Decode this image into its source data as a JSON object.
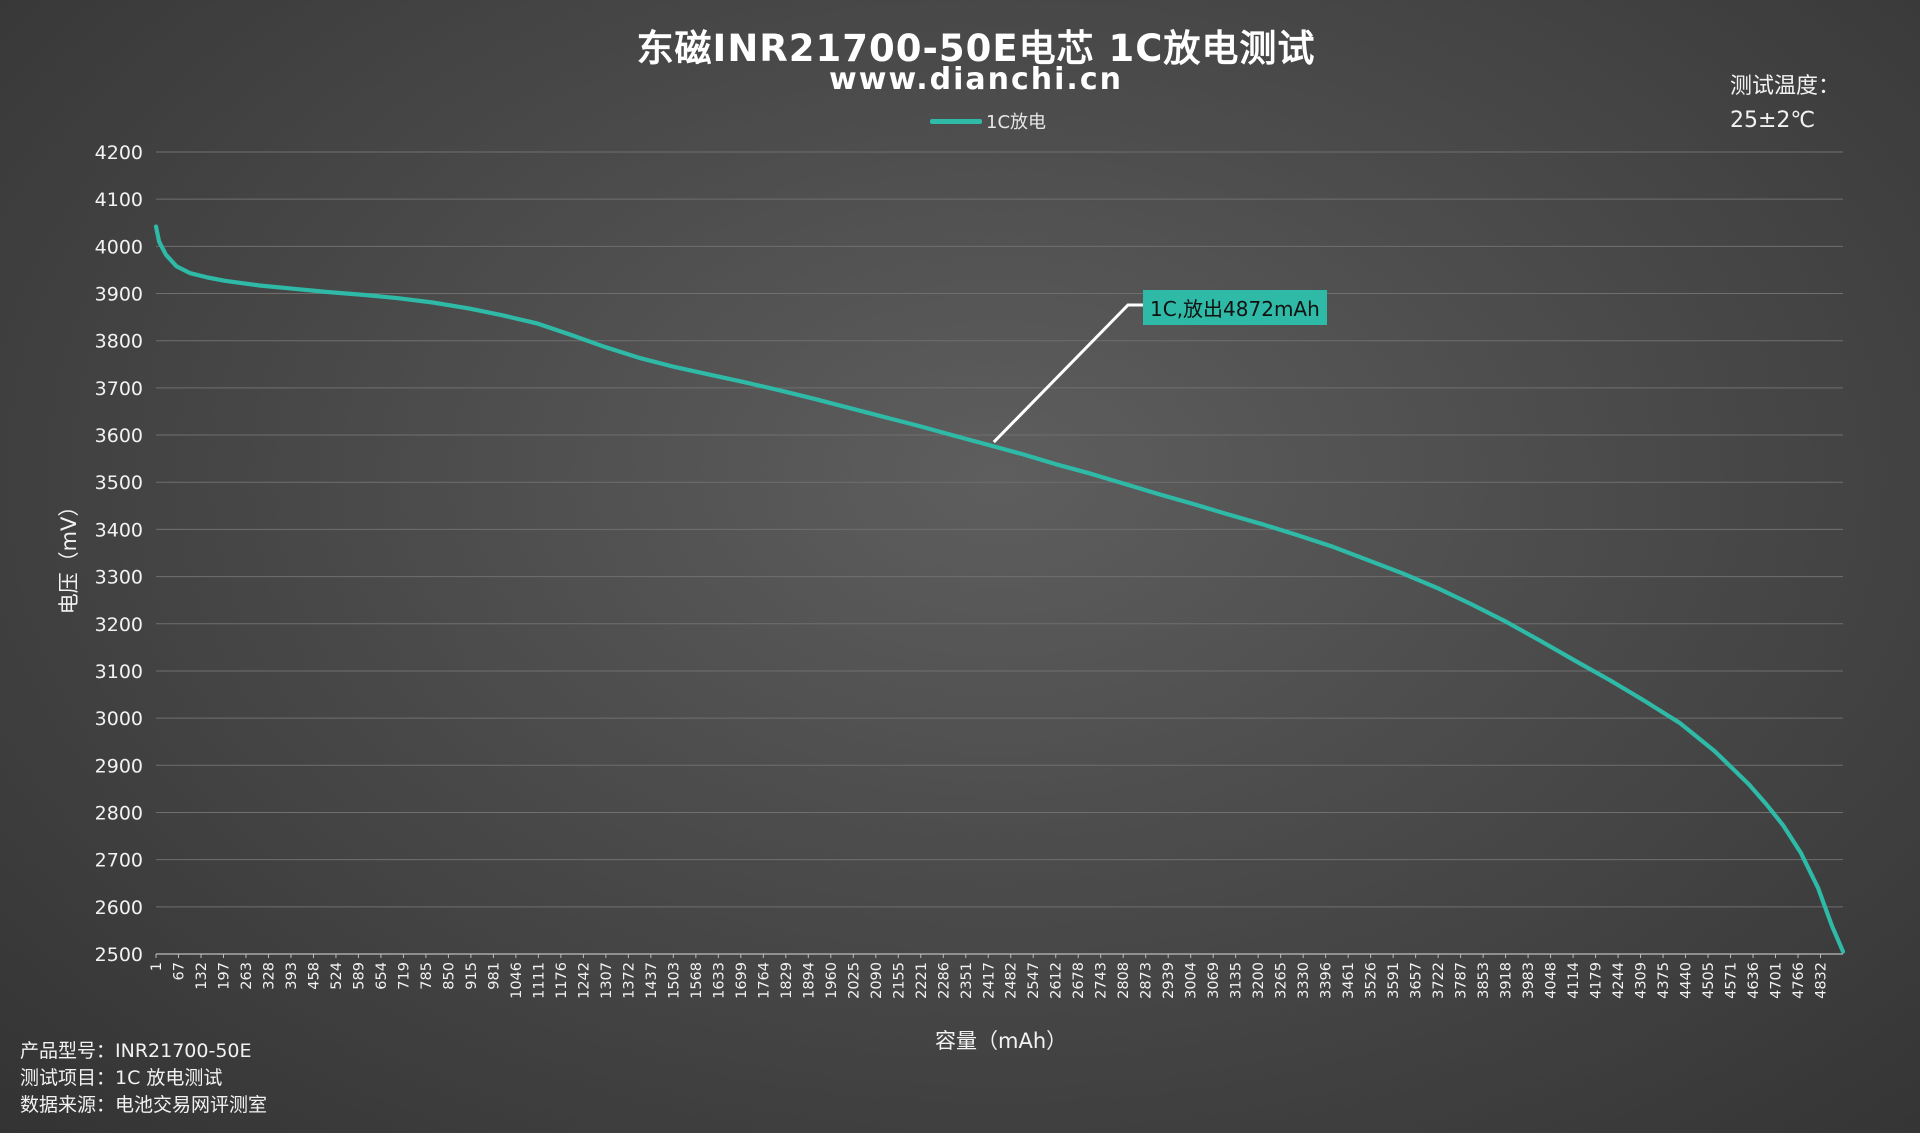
{
  "page": {
    "title": "东磁INR21700-50E电芯 1C放电测试",
    "subtitle": "www.dianchi.cn",
    "temperature_label": "测试温度：",
    "temperature_value": "25±2℃",
    "info_lines": [
      "产品型号：INR21700-50E",
      "测试项目：1C 放电测试",
      "数据来源：电池交易网评测室"
    ]
  },
  "chart_data": {
    "type": "line",
    "title": "东磁INR21700-50E电芯 1C放电测试",
    "subtitle": "www.dianchi.cn",
    "xlabel": "容量（mAh）",
    "ylabel": "电压（mV）",
    "ylim": [
      2500,
      4200
    ],
    "yticks": [
      2500,
      2600,
      2700,
      2800,
      2900,
      3000,
      3100,
      3200,
      3300,
      3400,
      3500,
      3600,
      3700,
      3800,
      3900,
      4000,
      4100,
      4200
    ],
    "xlim": [
      1,
      4872
    ],
    "x_tick_labels": [
      "1",
      "67",
      "132",
      "197",
      "263",
      "328",
      "393",
      "458",
      "524",
      "589",
      "654",
      "719",
      "785",
      "850",
      "915",
      "981",
      "1046",
      "1111",
      "1176",
      "1242",
      "1307",
      "1372",
      "1437",
      "1503",
      "1568",
      "1633",
      "1699",
      "1764",
      "1829",
      "1894",
      "1960",
      "2025",
      "2090",
      "2155",
      "2221",
      "2286",
      "2351",
      "2417",
      "2482",
      "2547",
      "2612",
      "2678",
      "2743",
      "2808",
      "2873",
      "2939",
      "3004",
      "3069",
      "3135",
      "3200",
      "3265",
      "3330",
      "3396",
      "3461",
      "3526",
      "3591",
      "3657",
      "3722",
      "3787",
      "3853",
      "3918",
      "3983",
      "4048",
      "4114",
      "4179",
      "4244",
      "4309",
      "4375",
      "4440",
      "4505",
      "4571",
      "4636",
      "4701",
      "4766",
      "4832"
    ],
    "grid": true,
    "legend": "top",
    "color": "#2ebaa7",
    "series": [
      {
        "name": "1C放电",
        "x": [
          1,
          10,
          30,
          60,
          100,
          150,
          200,
          300,
          400,
          500,
          600,
          700,
          800,
          900,
          1000,
          1100,
          1200,
          1300,
          1400,
          1500,
          1600,
          1700,
          1800,
          1900,
          2000,
          2100,
          2200,
          2300,
          2400,
          2500,
          2600,
          2700,
          2800,
          2900,
          3000,
          3100,
          3200,
          3300,
          3400,
          3500,
          3600,
          3700,
          3800,
          3900,
          4000,
          4100,
          4200,
          4300,
          4400,
          4500,
          4600,
          4650,
          4700,
          4750,
          4800,
          4840,
          4872
        ],
        "y": [
          4042,
          4010,
          3982,
          3958,
          3943,
          3934,
          3927,
          3917,
          3910,
          3903,
          3897,
          3890,
          3881,
          3869,
          3854,
          3837,
          3812,
          3786,
          3763,
          3744,
          3728,
          3712,
          3695,
          3677,
          3658,
          3639,
          3620,
          3600,
          3580,
          3560,
          3538,
          3518,
          3496,
          3474,
          3453,
          3431,
          3410,
          3387,
          3363,
          3335,
          3307,
          3276,
          3241,
          3204,
          3163,
          3121,
          3080,
          3036,
          2990,
          2931,
          2860,
          2818,
          2772,
          2715,
          2640,
          2560,
          2505
        ]
      }
    ],
    "annotations": [
      {
        "text": "1C,放出4872mAh",
        "x": 2420,
        "y": 3585
      }
    ]
  }
}
